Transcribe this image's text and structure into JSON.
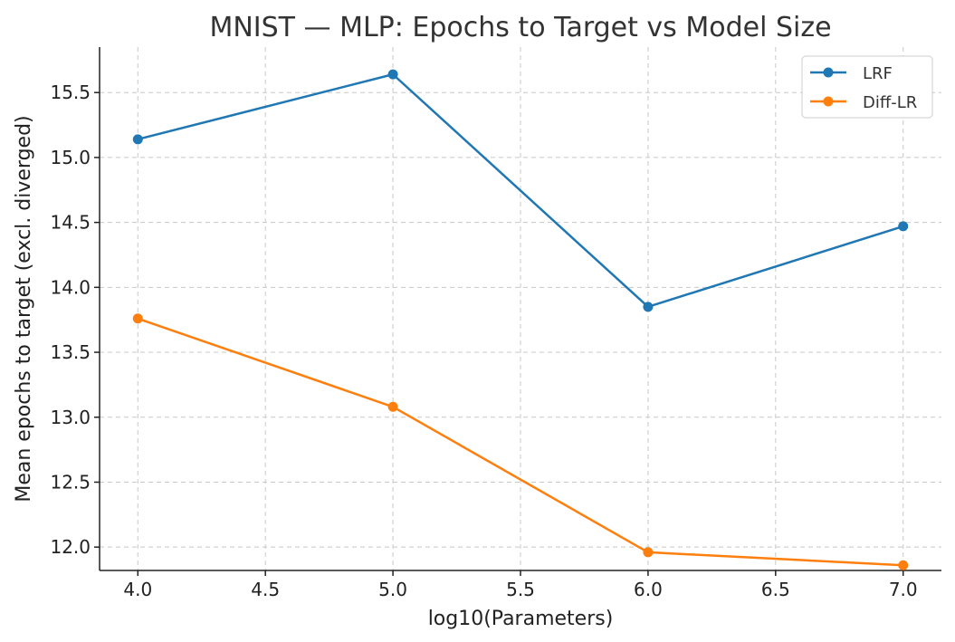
{
  "chart_data": {
    "type": "line",
    "title": "MNIST — MLP: Epochs to Target vs Model Size",
    "xlabel": "log10(Parameters)",
    "ylabel": "Mean epochs to target (excl. diverged)",
    "x": [
      4.0,
      5.0,
      6.0,
      7.0
    ],
    "xlim": [
      3.85,
      7.15
    ],
    "ylim": [
      11.82,
      15.85
    ],
    "xticks": [
      4.0,
      4.5,
      5.0,
      5.5,
      6.0,
      6.5,
      7.0
    ],
    "xtick_labels": [
      "4.0",
      "4.5",
      "5.0",
      "5.5",
      "6.0",
      "6.5",
      "7.0"
    ],
    "yticks": [
      12.0,
      12.5,
      13.0,
      13.5,
      14.0,
      14.5,
      15.0,
      15.5
    ],
    "ytick_labels": [
      "12.0",
      "12.5",
      "13.0",
      "13.5",
      "14.0",
      "14.5",
      "15.0",
      "15.5"
    ],
    "grid": true,
    "legend_position": "top-right",
    "series": [
      {
        "name": "LRF",
        "color": "#1f77b4",
        "values": [
          15.14,
          15.64,
          13.85,
          14.47
        ]
      },
      {
        "name": "Diff-LR",
        "color": "#ff7f0e",
        "values": [
          13.76,
          13.08,
          11.96,
          11.86
        ]
      }
    ]
  }
}
